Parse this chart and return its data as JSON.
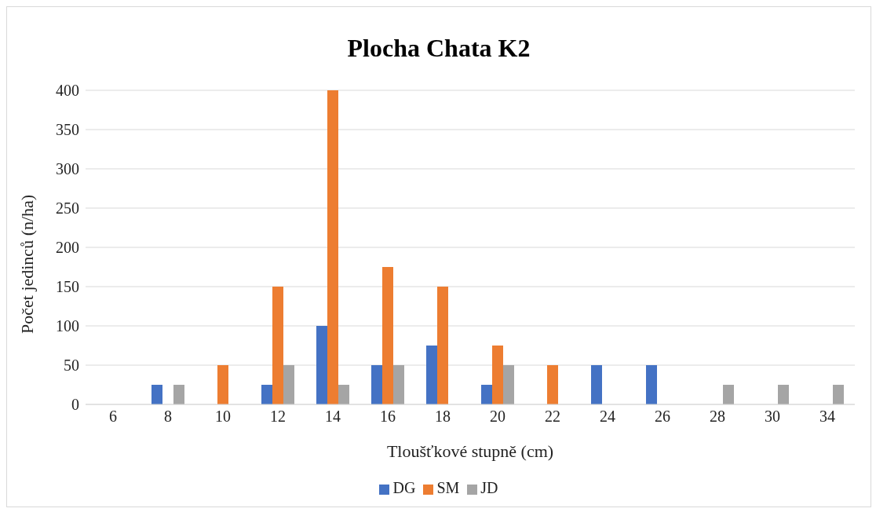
{
  "chart_data": {
    "type": "bar",
    "title": "Plocha Chata K2",
    "xlabel": "Tloušťkové stupně (cm)",
    "ylabel": "Počet jedinců (n/ha)",
    "categories": [
      "6",
      "8",
      "10",
      "12",
      "14",
      "16",
      "18",
      "20",
      "22",
      "24",
      "26",
      "28",
      "30",
      "34"
    ],
    "series": [
      {
        "name": "DG",
        "color": "#4472c4",
        "values": [
          0,
          25,
          0,
          25,
          100,
          50,
          75,
          25,
          0,
          50,
          50,
          0,
          0,
          0
        ]
      },
      {
        "name": "SM",
        "color": "#ed7d31",
        "values": [
          0,
          0,
          50,
          150,
          400,
          175,
          150,
          75,
          50,
          0,
          0,
          0,
          0,
          0
        ]
      },
      {
        "name": "JD",
        "color": "#a5a5a5",
        "values": [
          0,
          25,
          0,
          50,
          25,
          50,
          0,
          50,
          0,
          0,
          0,
          25,
          25,
          25
        ]
      }
    ],
    "ylim": [
      0,
      400
    ],
    "yticks": [
      0,
      50,
      100,
      150,
      200,
      250,
      300,
      350,
      400
    ],
    "grid": "y",
    "legend": "bottom"
  }
}
